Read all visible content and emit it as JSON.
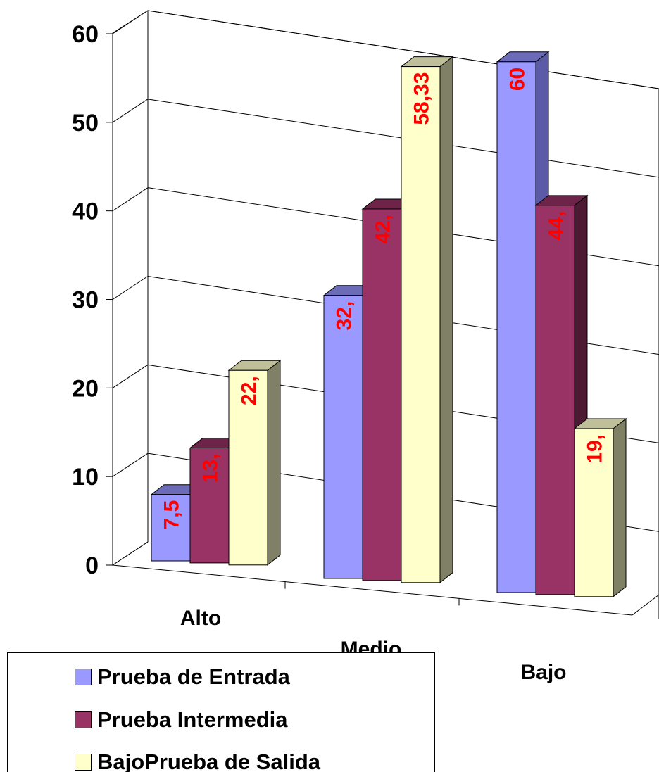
{
  "chart_data": {
    "type": "bar",
    "categories": [
      "Alto",
      "Medio",
      "Bajo"
    ],
    "series": [
      {
        "name": "Prueba de Entrada",
        "values": [
          7.5,
          32,
          60
        ],
        "labels": [
          "7,5",
          "32,",
          "60"
        ],
        "color": "#9999FF",
        "side": "#5A5AA6",
        "top": "#6B6BB8"
      },
      {
        "name": "Prueba Intermedia",
        "values": [
          13,
          42,
          44
        ],
        "labels": [
          "13,",
          "42,",
          "44,"
        ],
        "color": "#993366",
        "side": "#4D1A33",
        "top": "#6E2448"
      },
      {
        "name": "BajoPrueba de Salida",
        "values": [
          22,
          58.33,
          19
        ],
        "labels": [
          "22,",
          "58,33",
          "19,"
        ],
        "color": "#FFFFCC",
        "side": "#808066",
        "top": "#BFBF99"
      }
    ],
    "yticks": [
      "0",
      "10",
      "20",
      "30",
      "40",
      "50",
      "60"
    ],
    "ylim": [
      0,
      60
    ],
    "grid": true,
    "label_color": "#FF0000",
    "legend": "bottom-left"
  }
}
